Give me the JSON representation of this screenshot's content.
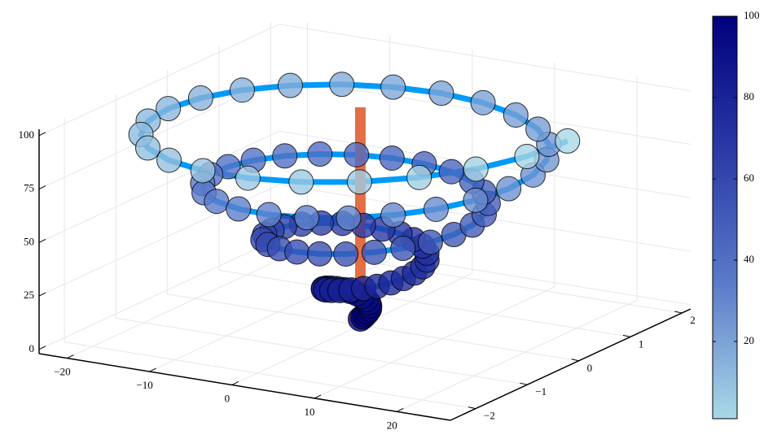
{
  "chart_data": {
    "type": "scatter3d",
    "xlim": [
      -23.4,
      26.5
    ],
    "ylim": [
      -2.49,
      2.17
    ],
    "zlim": [
      -1.97,
      102.97
    ],
    "xticks": [
      {
        "value": -20,
        "label": "−20"
      },
      {
        "value": -10,
        "label": "−10"
      },
      0,
      10,
      20
    ],
    "yticks": [
      {
        "value": -2,
        "label": "−2"
      },
      {
        "value": -1,
        "label": "−1"
      },
      0,
      1,
      2
    ],
    "zticks": [
      0,
      25,
      50,
      75,
      100
    ],
    "grid": true,
    "colorbar": {
      "clim": [
        1,
        100
      ],
      "ticks": [
        20,
        40,
        60,
        80,
        100
      ],
      "colormap": [
        "#a9d8e6",
        "#5b7bca",
        "#2a3aa6",
        "#00007d"
      ]
    },
    "series": [
      {
        "color": "#009af9",
        "marker_alpha": 0.8,
        "x": [
          0,
          0.25,
          0.44,
          0.55,
          0.54,
          0.38,
          0.07,
          -0.36,
          -0.9,
          -1.5,
          -2.09,
          -2.62,
          -3.03,
          -3.26,
          -3.26,
          -2.99,
          -2.46,
          -1.67,
          -0.65,
          0.53,
          1.81,
          3.09,
          4.28,
          5.27,
          5.98,
          6.33,
          6.27,
          5.77,
          4.82,
          3.48,
          1.8,
          -0.13,
          -2.16,
          -4.19,
          -6.06,
          -7.62,
          -8.77,
          -9.39,
          -9.41,
          -8.8,
          -7.57,
          -5.77,
          -3.49,
          -0.87,
          1.94,
          4.75,
          7.37,
          9.61,
          11.31,
          12.34,
          12.59,
          12.02,
          10.63,
          8.49,
          5.7,
          2.42,
          -1.13,
          -4.73,
          -8.16,
          -11.16,
          -13.54,
          -15.11,
          -15.73,
          -15.35,
          -13.94,
          -11.58,
          -8.38,
          -4.53,
          -0.27,
          4.13,
          8.39,
          12.23,
          15.38,
          17.61,
          18.75,
          18.7,
          17.42,
          14.97,
          11.49,
          7.16,
          2.25,
          -2.93,
          -8.04,
          -12.76,
          -16.76,
          -19.77,
          -21.56,
          -21.99,
          -20.99,
          -18.61,
          -14.96,
          -10.26,
          -4.78,
          1.12,
          7.09,
          12.72,
          17.64,
          21.52,
          24.08,
          25.13
        ],
        "y": [
          0,
          0.01,
          0.02,
          0.05,
          0.09,
          0.12,
          0.15,
          0.17,
          0.18,
          0.17,
          0.14,
          0.1,
          0.03,
          -0.05,
          -0.14,
          -0.24,
          -0.32,
          -0.4,
          -0.45,
          -0.48,
          -0.47,
          -0.43,
          -0.36,
          -0.25,
          -0.12,
          0.04,
          0.21,
          0.37,
          0.52,
          0.65,
          0.74,
          0.79,
          0.78,
          0.73,
          0.62,
          0.46,
          0.26,
          0.03,
          -0.21,
          -0.45,
          -0.68,
          -0.87,
          -1.01,
          -1.09,
          -1.1,
          -1.04,
          -0.91,
          -0.71,
          -0.45,
          -0.16,
          0.16,
          0.48,
          0.78,
          1.04,
          1.25,
          1.38,
          1.42,
          1.37,
          1.23,
          1.0,
          0.7,
          0.34,
          -0.05,
          -0.45,
          -0.83,
          -1.18,
          -1.45,
          -1.64,
          -1.73,
          -1.7,
          -1.57,
          -1.32,
          -0.99,
          -0.58,
          -0.12,
          0.36,
          0.83,
          1.26,
          1.61,
          1.87,
          2.02,
          2.04,
          1.92,
          1.68,
          1.32,
          0.87,
          0.35,
          -0.21,
          -0.76,
          -1.28,
          -1.73,
          -2.07,
          -2.29,
          -2.36,
          -2.28,
          -2.05,
          -1.68,
          -1.2,
          -0.62,
          0
        ],
        "z": [
          1,
          2,
          3,
          4,
          5,
          6,
          7,
          8,
          9,
          10,
          11,
          12,
          13,
          14,
          15,
          16,
          17,
          18,
          19,
          20,
          21,
          22,
          23,
          24,
          25,
          26,
          27,
          28,
          29,
          30,
          31,
          32,
          33,
          34,
          35,
          36,
          37,
          38,
          39,
          40,
          41,
          42,
          43,
          44,
          45,
          46,
          47,
          48,
          49,
          50,
          51,
          52,
          53,
          54,
          55,
          56,
          57,
          58,
          59,
          60,
          61,
          62,
          63,
          64,
          65,
          66,
          67,
          68,
          69,
          70,
          71,
          72,
          73,
          74,
          75,
          76,
          77,
          78,
          79,
          80,
          81,
          82,
          83,
          84,
          85,
          86,
          87,
          88,
          89,
          90,
          91,
          92,
          93,
          94,
          95,
          96,
          97,
          98,
          99,
          100
        ],
        "zcolor": [
          100,
          99,
          98,
          97,
          96,
          95,
          94,
          93,
          92,
          91,
          90,
          89,
          88,
          87,
          86,
          85,
          84,
          83,
          82,
          81,
          80,
          79,
          78,
          77,
          76,
          75,
          74,
          73,
          72,
          71,
          70,
          69,
          68,
          67,
          66,
          65,
          64,
          63,
          62,
          61,
          60,
          59,
          58,
          57,
          56,
          55,
          54,
          53,
          52,
          51,
          50,
          49,
          48,
          47,
          46,
          45,
          44,
          43,
          42,
          41,
          40,
          39,
          38,
          37,
          36,
          35,
          34,
          33,
          32,
          31,
          30,
          29,
          28,
          27,
          26,
          25,
          24,
          23,
          22,
          21,
          20,
          19,
          18,
          17,
          16,
          15,
          14,
          13,
          12,
          11,
          10,
          9,
          8,
          7,
          6,
          5,
          4,
          3,
          2,
          1
        ]
      },
      {
        "color": "#e26f46",
        "x": [
          0,
          0
        ],
        "y": [
          0,
          0
        ],
        "z": [
          1,
          100
        ]
      }
    ]
  }
}
